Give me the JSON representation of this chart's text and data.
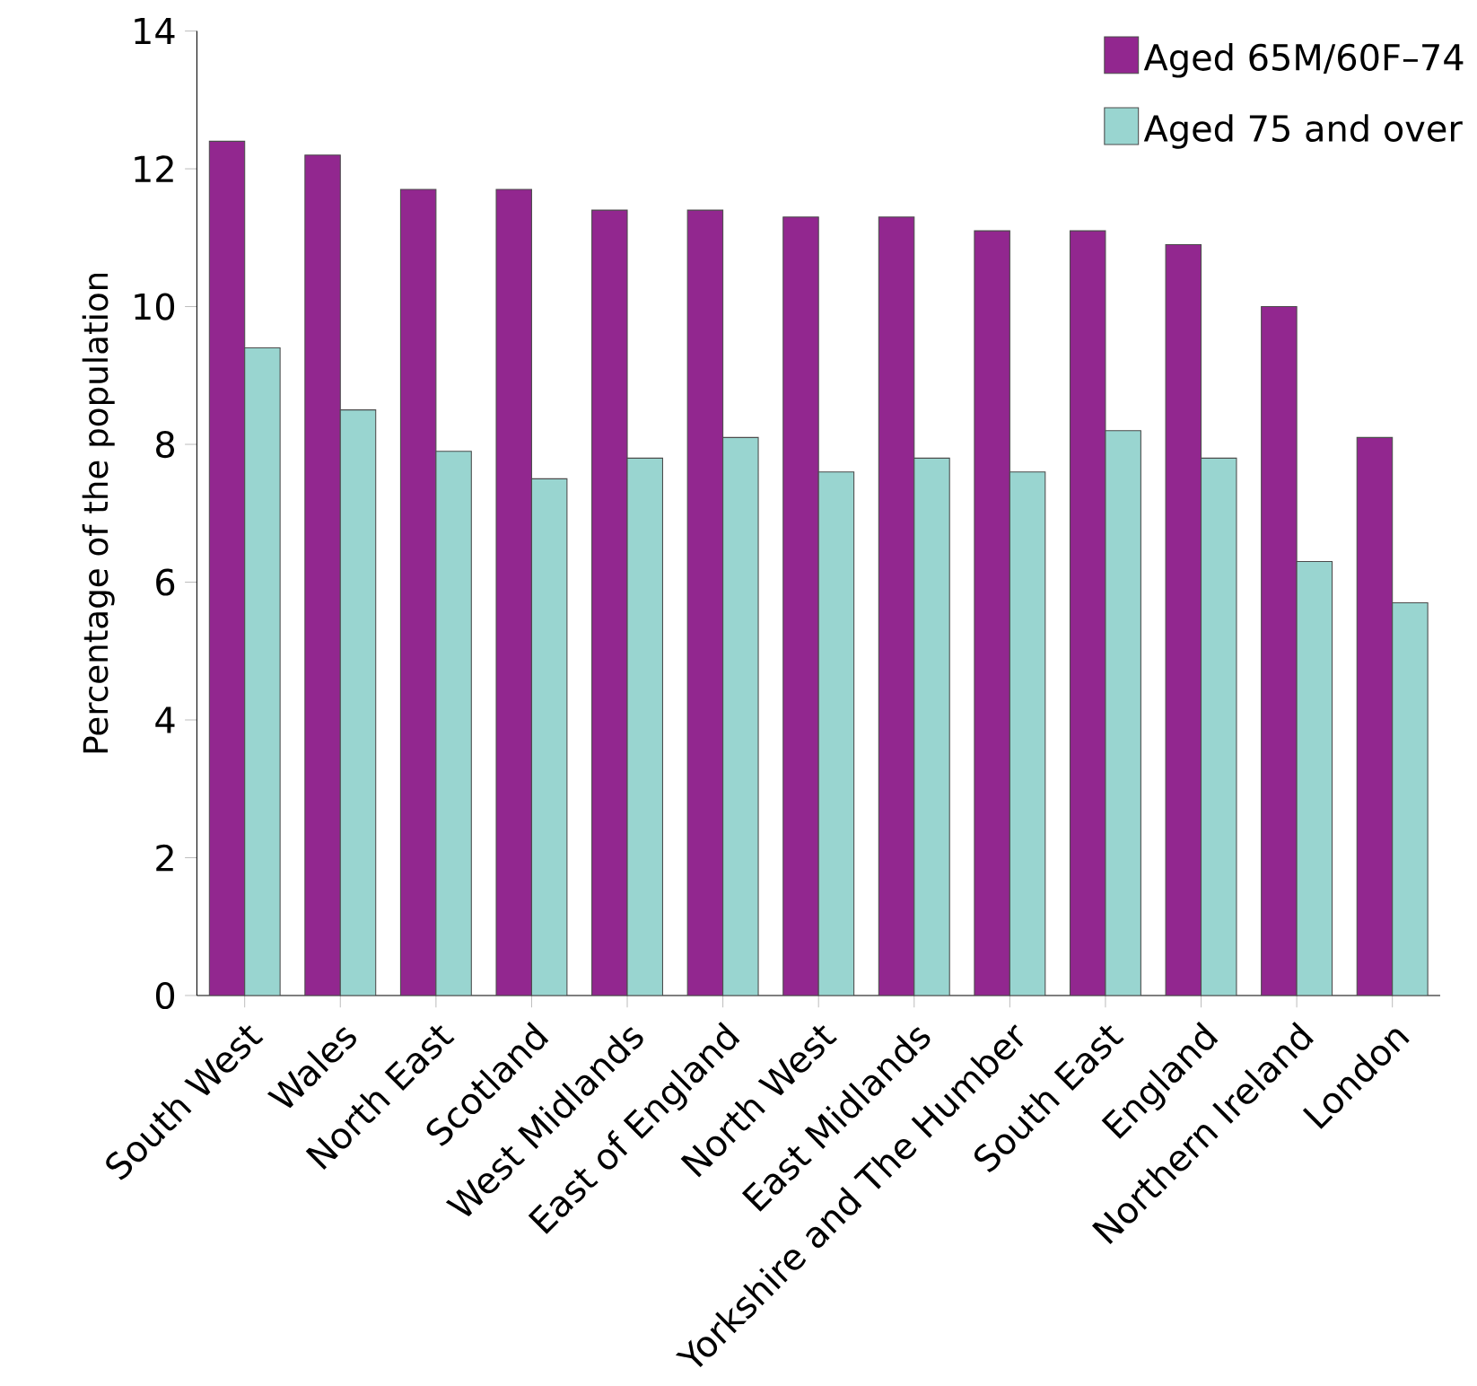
{
  "chart_data": {
    "type": "bar",
    "ylabel": "Percentage of the population",
    "categories": [
      "South West",
      "Wales",
      "North East",
      "Scotland",
      "West Midlands",
      "East of England",
      "North West",
      "East Midlands",
      "Yorkshire and The Humber",
      "South East",
      "England",
      "Northern Ireland",
      "London"
    ],
    "series": [
      {
        "name": "Aged 65M/60F–74",
        "color": "#92278f",
        "values": [
          12.4,
          12.2,
          11.7,
          11.7,
          11.4,
          11.4,
          11.3,
          11.3,
          11.1,
          11.1,
          10.9,
          10.0,
          8.1
        ]
      },
      {
        "name": "Aged 75 and over",
        "color": "#99d5d0",
        "values": [
          9.4,
          8.5,
          7.9,
          7.5,
          7.8,
          8.1,
          7.6,
          7.8,
          7.6,
          8.2,
          7.8,
          6.3,
          5.7
        ]
      }
    ],
    "ylim": [
      0,
      14
    ],
    "yticks": [
      0,
      2,
      4,
      6,
      8,
      10,
      12,
      14
    ],
    "legend": "top right",
    "grid": false
  }
}
